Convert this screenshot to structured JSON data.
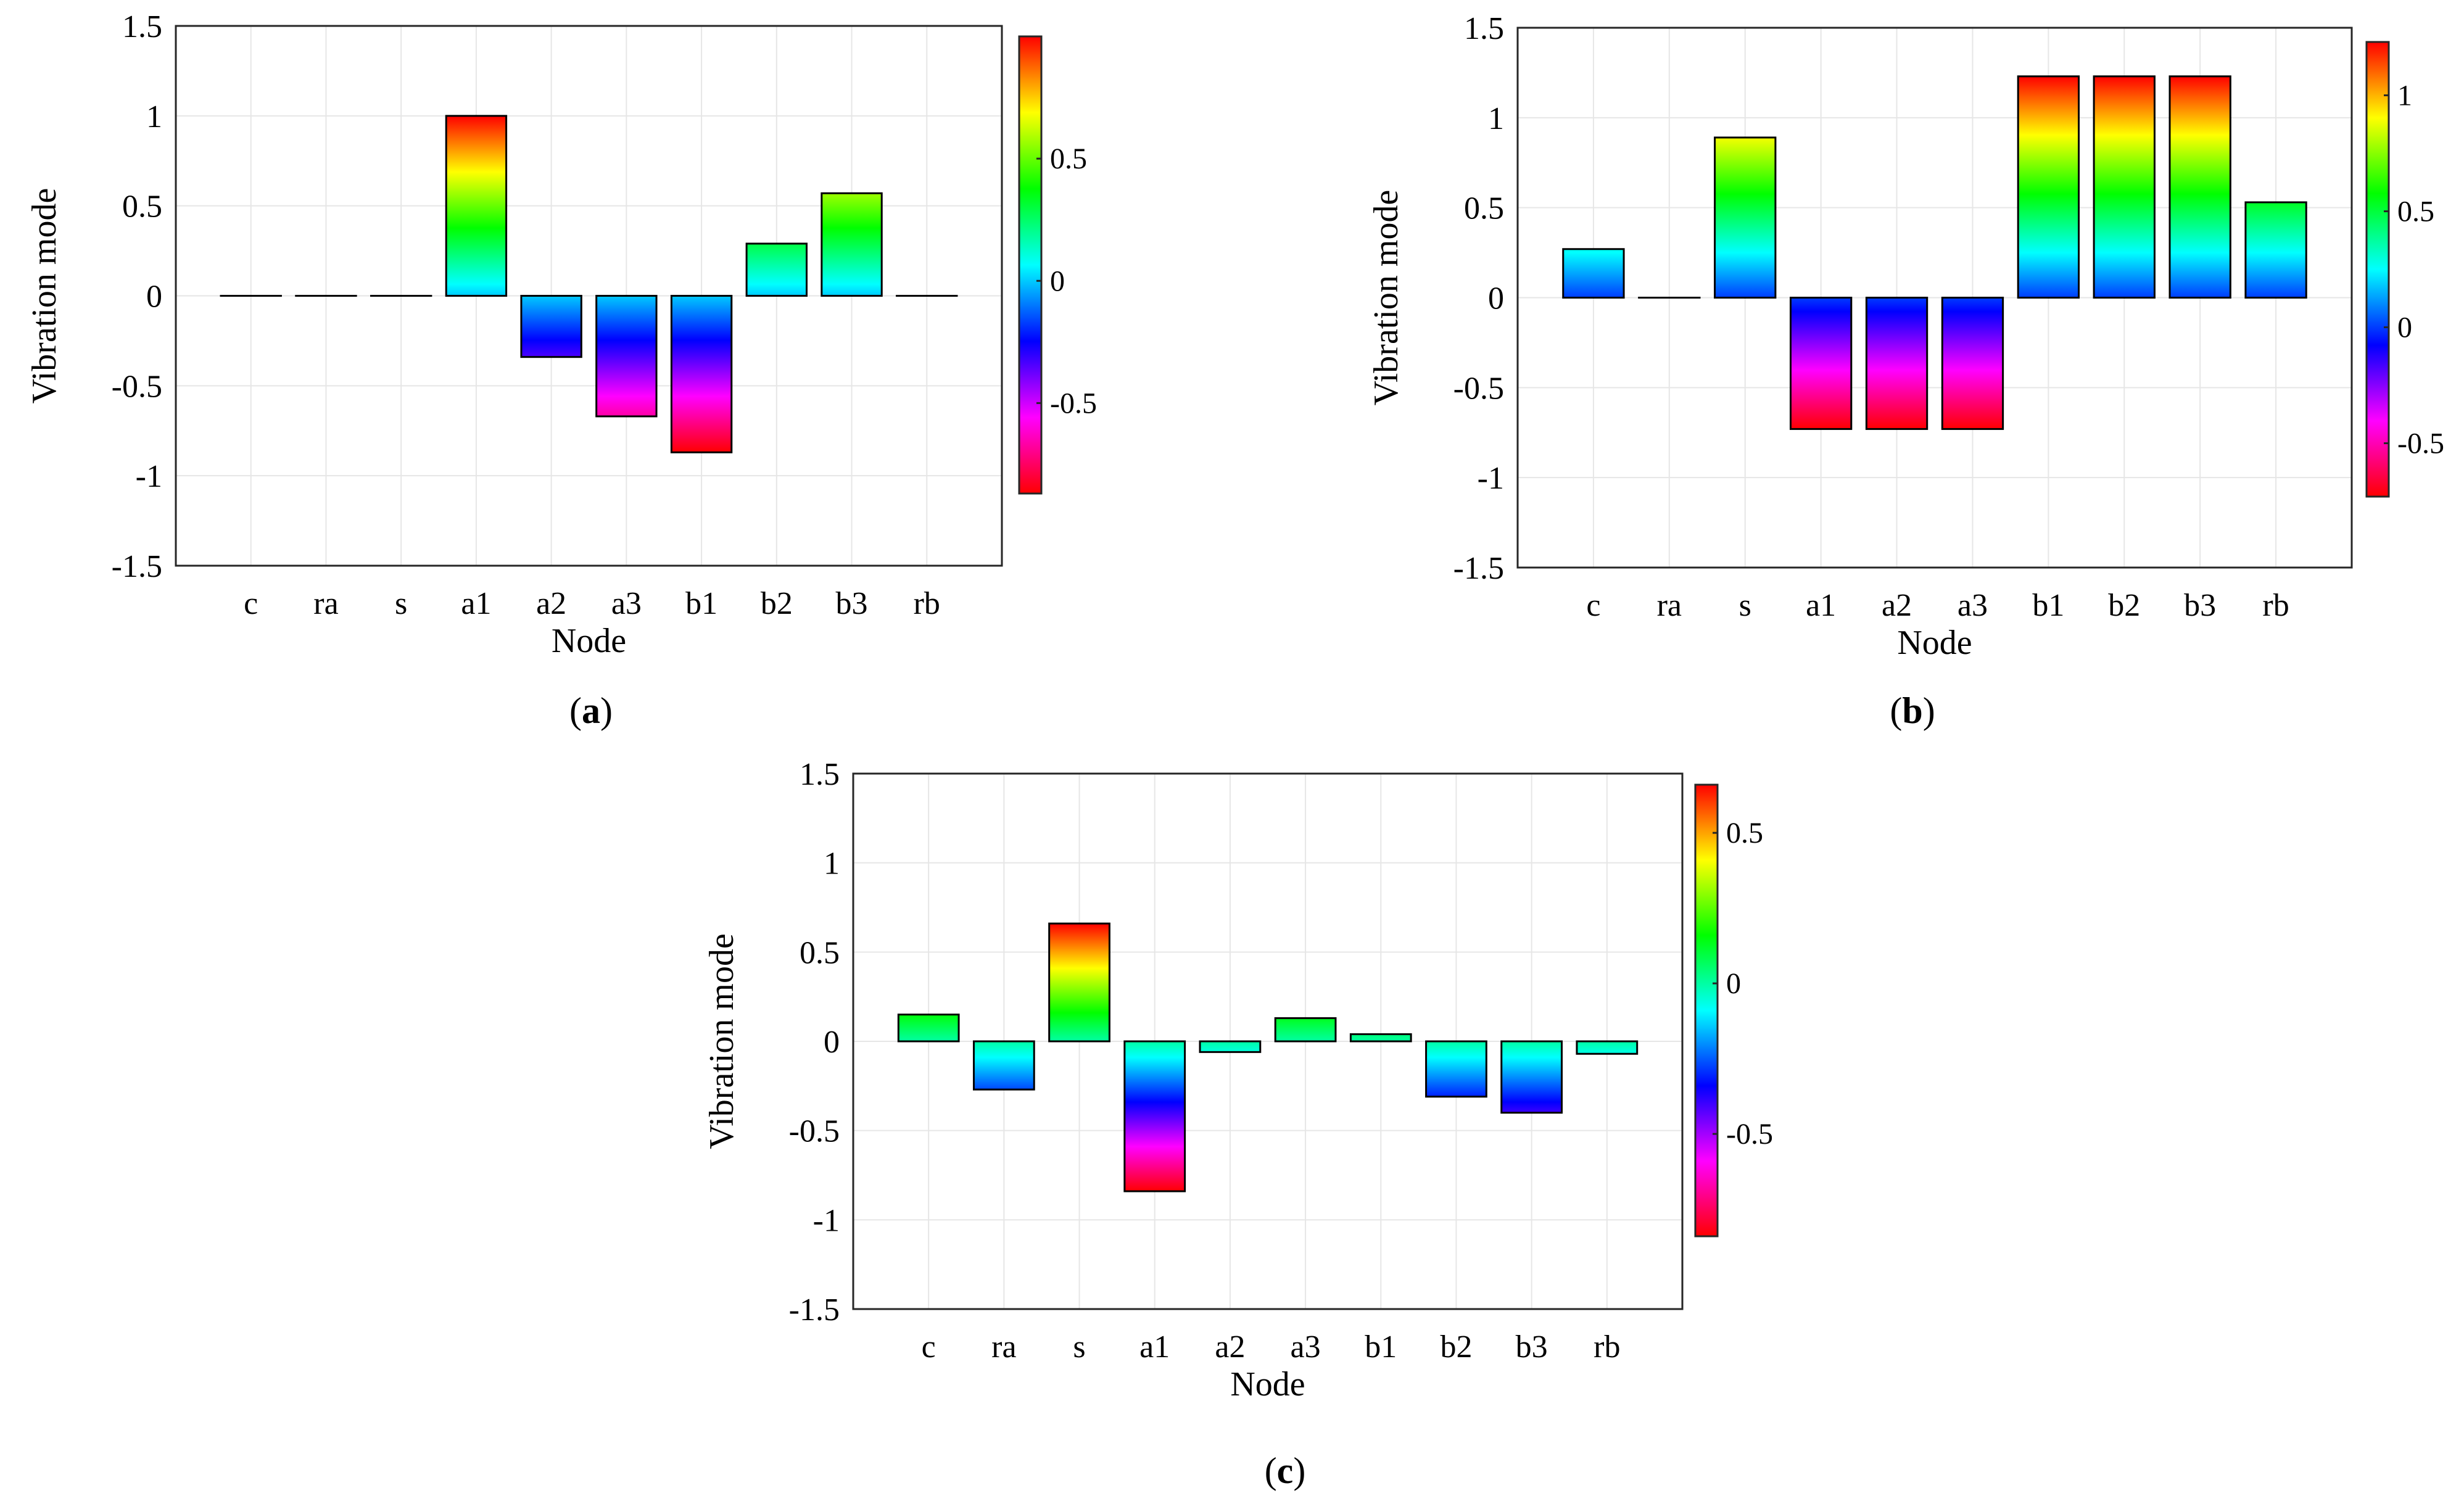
{
  "figure": {
    "colormap": [
      "#ff0000",
      "#ff00ff",
      "#0000ff",
      "#00ffff",
      "#00ff00",
      "#ffff00",
      "#ff0000"
    ],
    "grid_color": "#e6e6e6",
    "axis_color": "#262626"
  },
  "chart_data": [
    {
      "id": "a",
      "type": "bar",
      "caption_letter": "a",
      "caption_open": "(",
      "caption_close": ")",
      "categories": [
        "c",
        "ra",
        "s",
        "a1",
        "a2",
        "a3",
        "b1",
        "b2",
        "b3",
        "rb"
      ],
      "values": [
        0,
        0,
        0,
        1.0,
        -0.34,
        -0.67,
        -0.87,
        0.29,
        0.57,
        0
      ],
      "xlabel": "Node",
      "ylabel": "Vibration mode",
      "ylim": [
        -1.5,
        1.5
      ],
      "yticks": [
        -1.5,
        -1,
        -0.5,
        0,
        0.5,
        1,
        1.5
      ],
      "ytick_labels": [
        "-1.5",
        "-1",
        "-0.5",
        "0",
        "0.5",
        "1",
        "1.5"
      ],
      "grid": true,
      "colorbar": {
        "range": [
          -0.87,
          1.0
        ],
        "ticks": [
          -0.5,
          0,
          0.5
        ],
        "tick_labels": [
          "-0.5",
          "0",
          "0.5"
        ]
      }
    },
    {
      "id": "b",
      "type": "bar",
      "caption_letter": "b",
      "caption_open": "(",
      "caption_close": ")",
      "categories": [
        "c",
        "ra",
        "s",
        "a1",
        "a2",
        "a3",
        "b1",
        "b2",
        "b3",
        "rb"
      ],
      "values": [
        0.27,
        0,
        0.89,
        -0.73,
        -0.73,
        -0.73,
        1.23,
        1.23,
        1.23,
        0.53
      ],
      "xlabel": "Node",
      "ylabel": "Vibration mode",
      "ylim": [
        -1.5,
        1.5
      ],
      "yticks": [
        -1.5,
        -1,
        -0.5,
        0,
        0.5,
        1,
        1.5
      ],
      "ytick_labels": [
        "-1.5",
        "-1",
        "-0.5",
        "0",
        "0.5",
        "1",
        "1.5"
      ],
      "grid": true,
      "colorbar": {
        "range": [
          -0.73,
          1.23
        ],
        "ticks": [
          -0.5,
          0,
          0.5,
          1
        ],
        "tick_labels": [
          "-0.5",
          "0",
          "0.5",
          "1"
        ]
      }
    },
    {
      "id": "c",
      "type": "bar",
      "caption_letter": "c",
      "caption_open": "(",
      "caption_close": ")",
      "categories": [
        "c",
        "ra",
        "s",
        "a1",
        "a2",
        "a3",
        "b1",
        "b2",
        "b3",
        "rb"
      ],
      "values": [
        0.15,
        -0.27,
        0.66,
        -0.84,
        -0.06,
        0.13,
        0.04,
        -0.31,
        -0.4,
        -0.07
      ],
      "xlabel": "Node",
      "ylabel": "Vibration mode",
      "ylim": [
        -1.5,
        1.5
      ],
      "yticks": [
        -1.5,
        -1,
        -0.5,
        0,
        0.5,
        1,
        1.5
      ],
      "ytick_labels": [
        "-1.5",
        "-1",
        "-0.5",
        "0",
        "0.5",
        "1",
        "1.5"
      ],
      "grid": true,
      "colorbar": {
        "range": [
          -0.84,
          0.66
        ],
        "ticks": [
          -0.5,
          0,
          0.5
        ],
        "tick_labels": [
          "-0.5",
          "0",
          "0.5"
        ]
      }
    }
  ]
}
